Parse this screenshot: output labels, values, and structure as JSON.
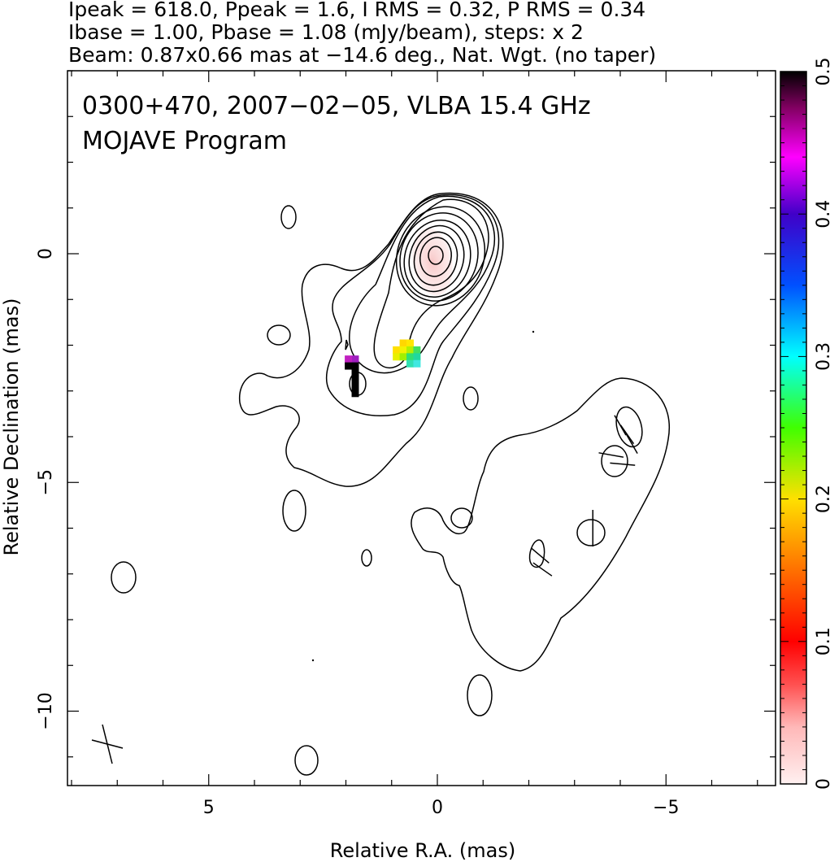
{
  "chart_data": {
    "type": "heatmap",
    "header_lines": [
      "Ipeak = 618.0, Ppeak = 1.6, I RMS = 0.32, P RMS = 0.34",
      "Ibase = 1.00, Pbase = 1.08 (mJy/beam), steps: x 2",
      "Beam: 0.87x0.66 mas at −14.6 deg., Nat. Wgt. (no taper)"
    ],
    "title": "0300+470, 2007−02−05, VLBA 15.4 GHz",
    "subtitle": "MOJAVE Program",
    "xlabel": "Relative R.A. (mas)",
    "ylabel": "Relative Declination (mas)",
    "xlim": [
      8.0,
      -7.5
    ],
    "ylim": [
      -11.5,
      4.0
    ],
    "x_reversed": true,
    "xticks": [
      5,
      0,
      -5
    ],
    "xtick_labels": [
      "5",
      "0",
      "−5"
    ],
    "yticks": [
      0,
      -5,
      -10
    ],
    "ytick_labels": [
      "0",
      "−5",
      "−10"
    ],
    "colorbar": {
      "min": 0,
      "max": 0.5,
      "ticks": [
        0,
        0.1,
        0.2,
        0.3,
        0.4,
        0.5
      ],
      "tick_labels": [
        "0",
        "0.1",
        "0.2",
        "0.3",
        "0.4",
        "0.5"
      ],
      "orientation": "vertical",
      "placement": "right"
    },
    "beam": {
      "major_mas": 0.87,
      "minor_mas": 0.66,
      "pa_deg": -14.6
    },
    "contours_total_intensity": {
      "peak_mJy_per_beam": 618.0,
      "base_mJy_per_beam": 1.0,
      "step_factor": 2,
      "core_position_mas": [
        0,
        0
      ]
    },
    "fractional_polarization_pixels": [
      {
        "ra": 0.75,
        "dec": -1.95,
        "value": 0.21,
        "color": "#ffd700"
      },
      {
        "ra": 0.6,
        "dec": -1.95,
        "value": 0.19,
        "color": "#ffe600"
      },
      {
        "ra": 0.9,
        "dec": -2.1,
        "value": 0.22,
        "color": "#ffe000"
      },
      {
        "ra": 0.75,
        "dec": -2.1,
        "value": 0.2,
        "color": "#f2f200"
      },
      {
        "ra": 0.6,
        "dec": -2.1,
        "value": 0.24,
        "color": "#b4f000"
      },
      {
        "ra": 0.45,
        "dec": -2.1,
        "value": 0.27,
        "color": "#40e060"
      },
      {
        "ra": 0.9,
        "dec": -2.25,
        "value": 0.21,
        "color": "#e8f000"
      },
      {
        "ra": 0.75,
        "dec": -2.25,
        "value": 0.23,
        "color": "#a0f000"
      },
      {
        "ra": 0.6,
        "dec": -2.25,
        "value": 0.27,
        "color": "#30e070"
      },
      {
        "ra": 0.45,
        "dec": -2.25,
        "value": 0.29,
        "color": "#20d8a0"
      },
      {
        "ra": 0.6,
        "dec": -2.4,
        "value": 0.29,
        "color": "#30e0b0"
      },
      {
        "ra": 0.45,
        "dec": -2.4,
        "value": 0.31,
        "color": "#40e8e0"
      },
      {
        "ra": 1.8,
        "dec": -2.3,
        "value": 0.45,
        "color": "#a020c0"
      },
      {
        "ra": 1.95,
        "dec": -2.3,
        "value": 0.46,
        "color": "#c020c0"
      },
      {
        "ra": 1.8,
        "dec": -2.45,
        "value": 0.5,
        "color": "#000000"
      },
      {
        "ra": 1.95,
        "dec": -2.45,
        "value": 0.5,
        "color": "#000000"
      },
      {
        "ra": 1.8,
        "dec": -2.6,
        "value": 0.5,
        "color": "#000000"
      },
      {
        "ra": 1.8,
        "dec": -2.75,
        "value": 0.5,
        "color": "#000000"
      },
      {
        "ra": 1.8,
        "dec": -2.9,
        "value": 0.5,
        "color": "#000000"
      },
      {
        "ra": 1.8,
        "dec": -3.05,
        "value": 0.5,
        "color": "#000000"
      }
    ],
    "polarization_vectors": [
      {
        "ra": -4.0,
        "dec": -3.75,
        "angle_deg": 150,
        "length_mas": 0.5
      },
      {
        "ra": -4.15,
        "dec": -3.95,
        "angle_deg": 145,
        "length_mas": 0.5
      },
      {
        "ra": -4.25,
        "dec": -4.15,
        "angle_deg": 150,
        "length_mas": 0.5
      },
      {
        "ra": -3.8,
        "dec": -4.4,
        "angle_deg": 100,
        "length_mas": 0.55
      },
      {
        "ra": -4.05,
        "dec": -4.6,
        "angle_deg": 95,
        "length_mas": 0.55
      },
      {
        "ra": -3.4,
        "dec": -6.0,
        "angle_deg": 0,
        "length_mas": 0.8
      },
      {
        "ra": -2.25,
        "dec": -6.6,
        "angle_deg": 130,
        "length_mas": 0.5
      },
      {
        "ra": -2.3,
        "dec": -6.9,
        "angle_deg": 125,
        "length_mas": 0.5
      }
    ]
  }
}
